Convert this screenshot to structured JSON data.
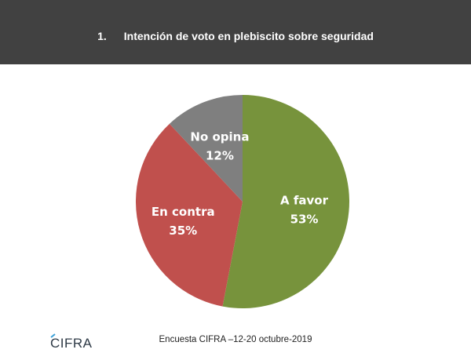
{
  "header": {
    "number": "1.",
    "title": "Intención de voto en plebiscito sobre seguridad",
    "background": "#414141"
  },
  "chart_data": {
    "type": "pie",
    "title": "Intención de voto en plebiscito sobre seguridad",
    "start_angle_deg": 0,
    "direction": "clockwise",
    "slices": [
      {
        "label": "A favor",
        "value": 53,
        "display": "53%",
        "color": "#77933C"
      },
      {
        "label": "En contra",
        "value": 35,
        "display": "35%",
        "color": "#C0504D"
      },
      {
        "label": "No opina",
        "value": 12,
        "display": "12%",
        "color": "#7F7F7F"
      }
    ]
  },
  "footer": {
    "source": "Encuesta CIFRA –12-20 octubre-2019",
    "logo_text": "CIFRA",
    "logo_color": "#2e3a46",
    "logo_accent": "#3aa0d8"
  }
}
